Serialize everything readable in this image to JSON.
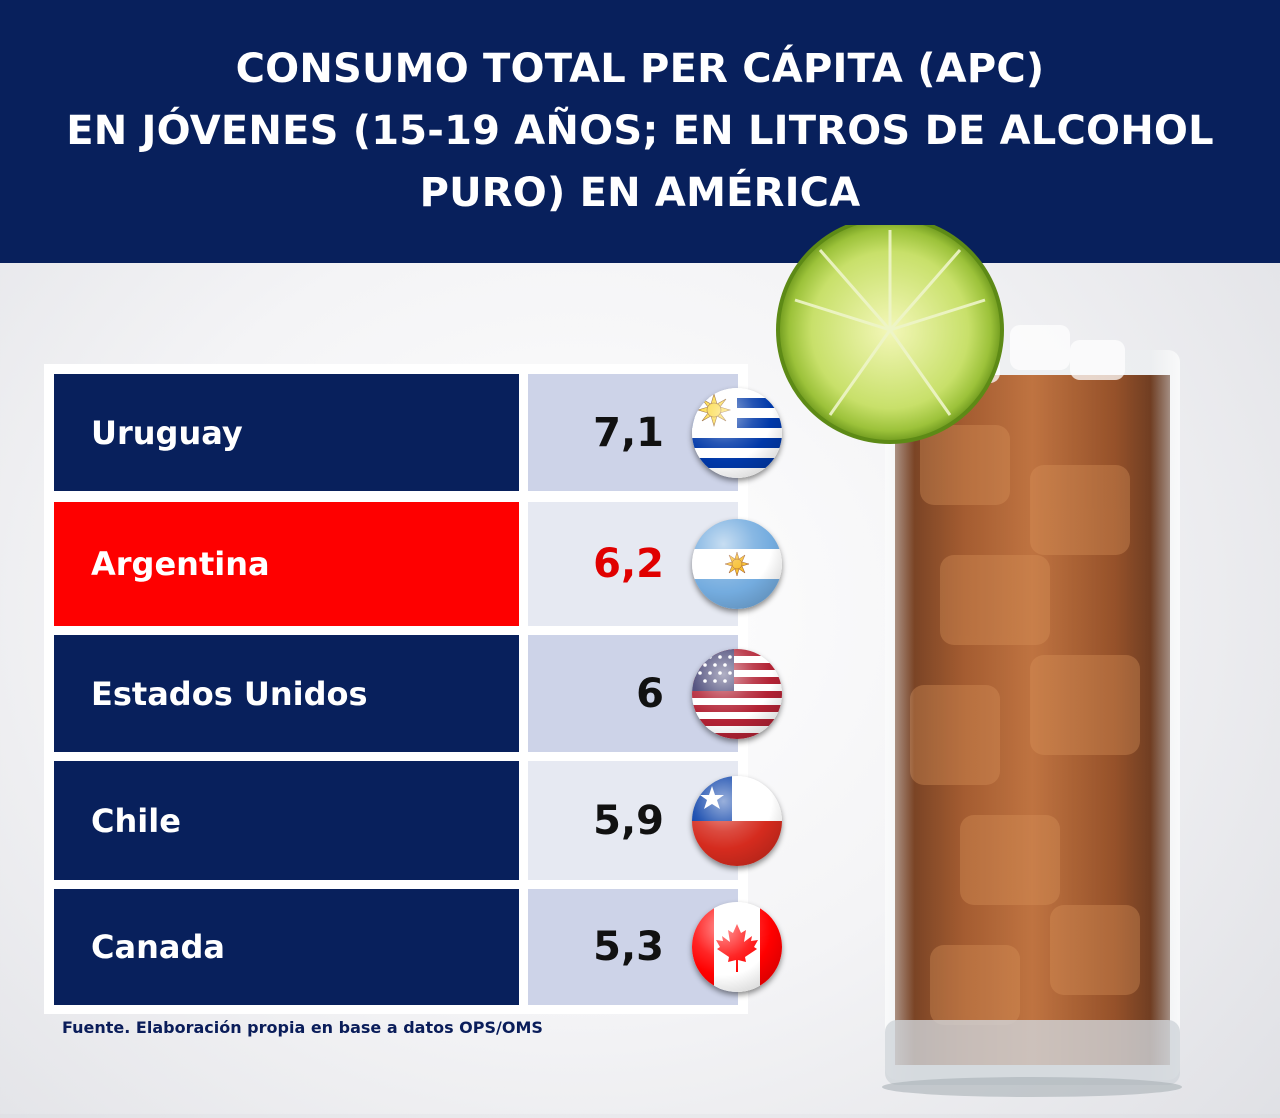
{
  "chart_data": {
    "type": "table",
    "title": "CONSUMO TOTAL PER CÁPITA (APC)\nEN JÓVENES (15-19 AÑOS; EN LITROS DE ALCOHOL\nPURO)  EN  AMÉRICA",
    "categories": [
      "Uruguay",
      "Argentina",
      "Estados Unidos",
      "Chile",
      "Canada"
    ],
    "values": [
      7.1,
      6.2,
      6,
      5.9,
      5.3
    ],
    "value_labels": [
      "7,1",
      "6,2",
      "6",
      "5,9",
      "5,3"
    ],
    "highlight": "Argentina",
    "colors": {
      "row": "#08205c",
      "highlight": "#fe0000",
      "highlight_value": "#e00000"
    },
    "source": "Fuente. Elaboración propia en base a datos OPS/OMS"
  },
  "flags": [
    "uruguay-flag-icon",
    "argentina-flag-icon",
    "usa-flag-icon",
    "chile-flag-icon",
    "canada-flag-icon"
  ]
}
